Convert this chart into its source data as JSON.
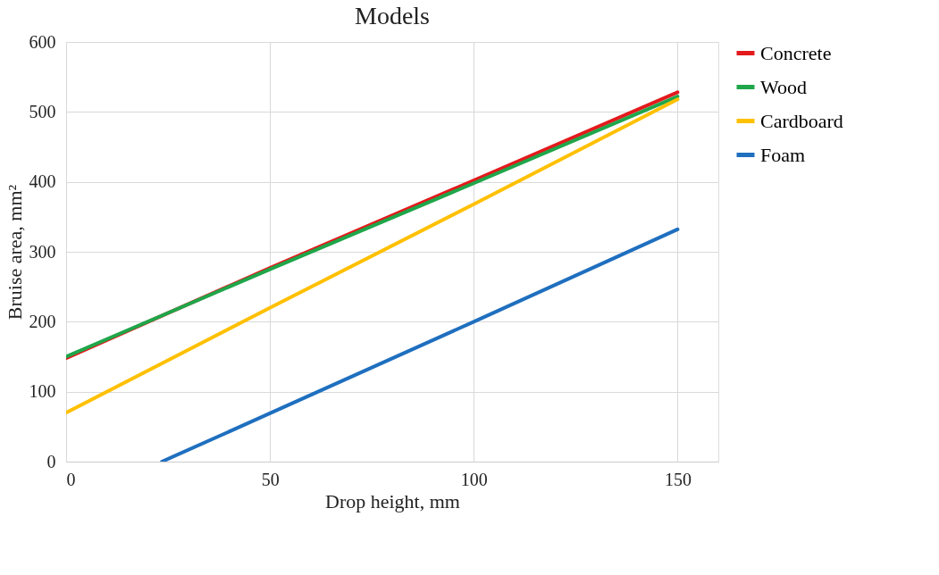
{
  "chart_data": {
    "type": "line",
    "title": "Models",
    "xlabel": "Drop height, mm",
    "ylabel": "Bruise area, mm²",
    "x": [
      0,
      50,
      100,
      150
    ],
    "series": [
      {
        "name": "Concrete",
        "color": "#e31a1c",
        "values": [
          148,
          277,
          402,
          528
        ]
      },
      {
        "name": "Wood",
        "color": "#1fa64a",
        "values": [
          150,
          275,
          398,
          522
        ]
      },
      {
        "name": "Cardboard",
        "color": "#ffc000",
        "values": [
          70,
          220,
          368,
          518
        ]
      },
      {
        "name": "Foam",
        "color": "#1f6fbf",
        "x": [
          23.5,
          50,
          100,
          150
        ],
        "values": [
          0,
          69,
          200,
          332
        ]
      }
    ],
    "xlim": [
      0,
      160
    ],
    "xticks": [
      0,
      50,
      100,
      150
    ],
    "ylim": [
      0,
      600
    ],
    "yticks": [
      0,
      100,
      200,
      300,
      400,
      500,
      600
    ],
    "grid": true,
    "legend": "right",
    "marker": "none",
    "line_style": "solid"
  }
}
